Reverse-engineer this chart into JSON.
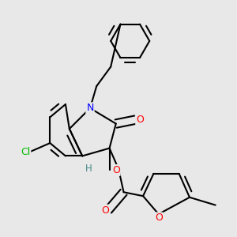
{
  "background_color": "#e8e8e8",
  "atom_colors": {
    "O": "#ff0000",
    "N": "#0000ff",
    "Cl": "#00bb00",
    "C": "#000000",
    "H": "#448888"
  },
  "bond_color": "#000000",
  "bond_width": 1.5,
  "figsize": [
    3.0,
    3.0
  ],
  "dpi": 100
}
